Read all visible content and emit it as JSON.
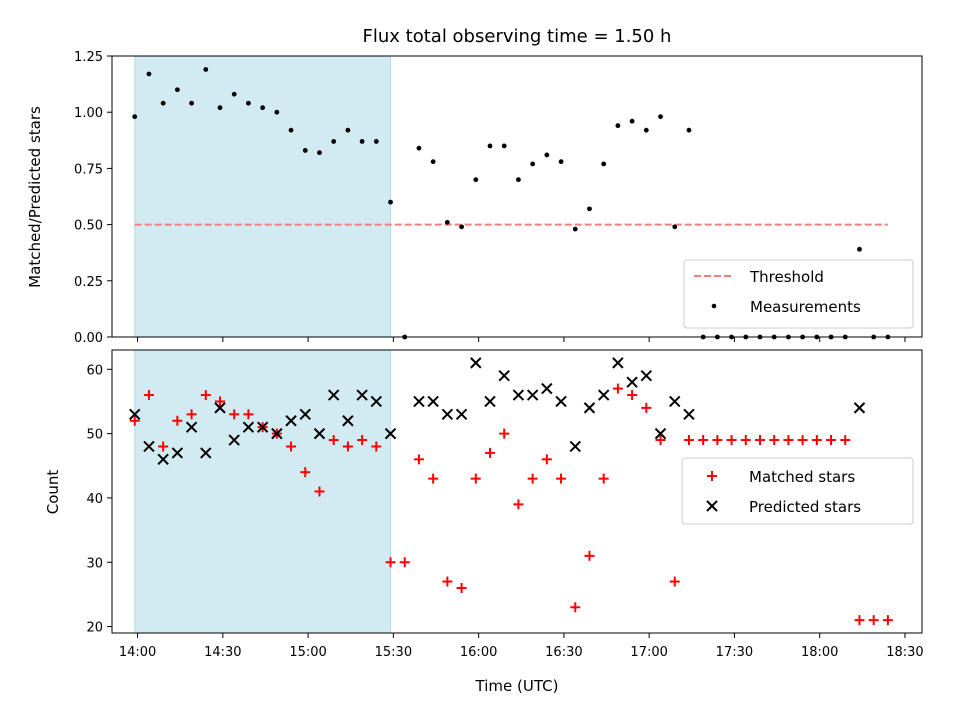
{
  "chart_data": {
    "type": "scatter",
    "title": "Flux total observing time = 1.50 h",
    "xlabel": "Time (UTC)",
    "x_tick_labels": [
      "14:00",
      "14:30",
      "15:00",
      "15:30",
      "16:00",
      "16:30",
      "17:00",
      "17:30",
      "18:00",
      "18:30"
    ],
    "x_range": [
      "13:51",
      "18:36"
    ],
    "shaded_interval": [
      "13:59",
      "15:29"
    ],
    "shade_color": "#add8e6",
    "times": [
      "13:59",
      "14:04",
      "14:09",
      "14:14",
      "14:19",
      "14:24",
      "14:29",
      "14:34",
      "14:39",
      "14:44",
      "14:49",
      "14:54",
      "14:59",
      "15:04",
      "15:09",
      "15:14",
      "15:19",
      "15:24",
      "15:29",
      "15:34",
      "15:39",
      "15:44",
      "15:49",
      "15:54",
      "15:59",
      "16:04",
      "16:09",
      "16:14",
      "16:19",
      "16:24",
      "16:29",
      "16:34",
      "16:39",
      "16:44",
      "16:49",
      "16:54",
      "16:59",
      "17:04",
      "17:09",
      "17:14",
      "17:19",
      "17:24",
      "17:29",
      "17:34",
      "17:39",
      "17:44",
      "17:49",
      "17:54",
      "17:59",
      "18:04",
      "18:09",
      "18:14",
      "18:19",
      "18:24"
    ],
    "panels": [
      {
        "id": "ratio",
        "ylabel": "Matched/Predicted stars",
        "ylim": [
          0,
          1.25
        ],
        "y_ticks": [
          0,
          0.25,
          0.5,
          0.75,
          1.0,
          1.25
        ],
        "y_tick_labels": [
          "0.00",
          "0.25",
          "0.50",
          "0.75",
          "1.00",
          "1.25"
        ],
        "legend": "lower-right",
        "threshold": {
          "name": "Threshold",
          "value": 0.5,
          "range": [
            "13:59",
            "18:24"
          ],
          "color": "#f08080"
        },
        "series": [
          {
            "name": "Measurements",
            "marker": "dot",
            "color": "#000000",
            "values": [
              0.98,
              1.17,
              1.04,
              1.1,
              1.04,
              1.19,
              1.02,
              1.08,
              1.04,
              1.02,
              1.0,
              0.92,
              0.83,
              0.82,
              0.87,
              0.92,
              0.87,
              0.87,
              0.6,
              0.0,
              0.84,
              0.78,
              0.51,
              0.49,
              0.7,
              0.85,
              0.85,
              0.7,
              0.77,
              0.81,
              0.78,
              0.48,
              0.57,
              0.77,
              0.94,
              0.96,
              0.92,
              0.98,
              0.49,
              0.92,
              0.0,
              0.0,
              0.0,
              0.0,
              0.0,
              0.0,
              0.0,
              0.0,
              0.0,
              0.0,
              0.0,
              0.39,
              0.0,
              0.0
            ]
          }
        ]
      },
      {
        "id": "count",
        "ylabel": "Count",
        "ylim": [
          19,
          63
        ],
        "y_ticks": [
          20,
          30,
          40,
          50,
          60
        ],
        "y_tick_labels": [
          "20",
          "30",
          "40",
          "50",
          "60"
        ],
        "legend": "center-right",
        "series": [
          {
            "name": "Matched stars",
            "marker": "plus",
            "color": "#ff0000",
            "values": [
              52,
              56,
              48,
              52,
              53,
              56,
              55,
              53,
              53,
              51,
              50,
              48,
              44,
              41,
              49,
              48,
              49,
              48,
              30,
              30,
              46,
              43,
              27,
              26,
              43,
              47,
              50,
              39,
              43,
              46,
              43,
              23,
              31,
              43,
              57,
              56,
              54,
              49,
              27,
              49,
              49,
              49,
              49,
              49,
              49,
              49,
              49,
              49,
              49,
              49,
              49,
              21,
              21,
              21
            ]
          },
          {
            "name": "Predicted stars",
            "marker": "x",
            "color": "#000000",
            "values": [
              53,
              48,
              46,
              47,
              51,
              47,
              54,
              49,
              51,
              51,
              50,
              52,
              53,
              50,
              56,
              52,
              56,
              55,
              50,
              null,
              55,
              55,
              53,
              53,
              61,
              55,
              59,
              56,
              56,
              57,
              55,
              48,
              54,
              56,
              61,
              58,
              59,
              50,
              55,
              53,
              null,
              null,
              null,
              null,
              null,
              null,
              null,
              null,
              null,
              null,
              null,
              54,
              null,
              null
            ]
          }
        ]
      }
    ]
  }
}
